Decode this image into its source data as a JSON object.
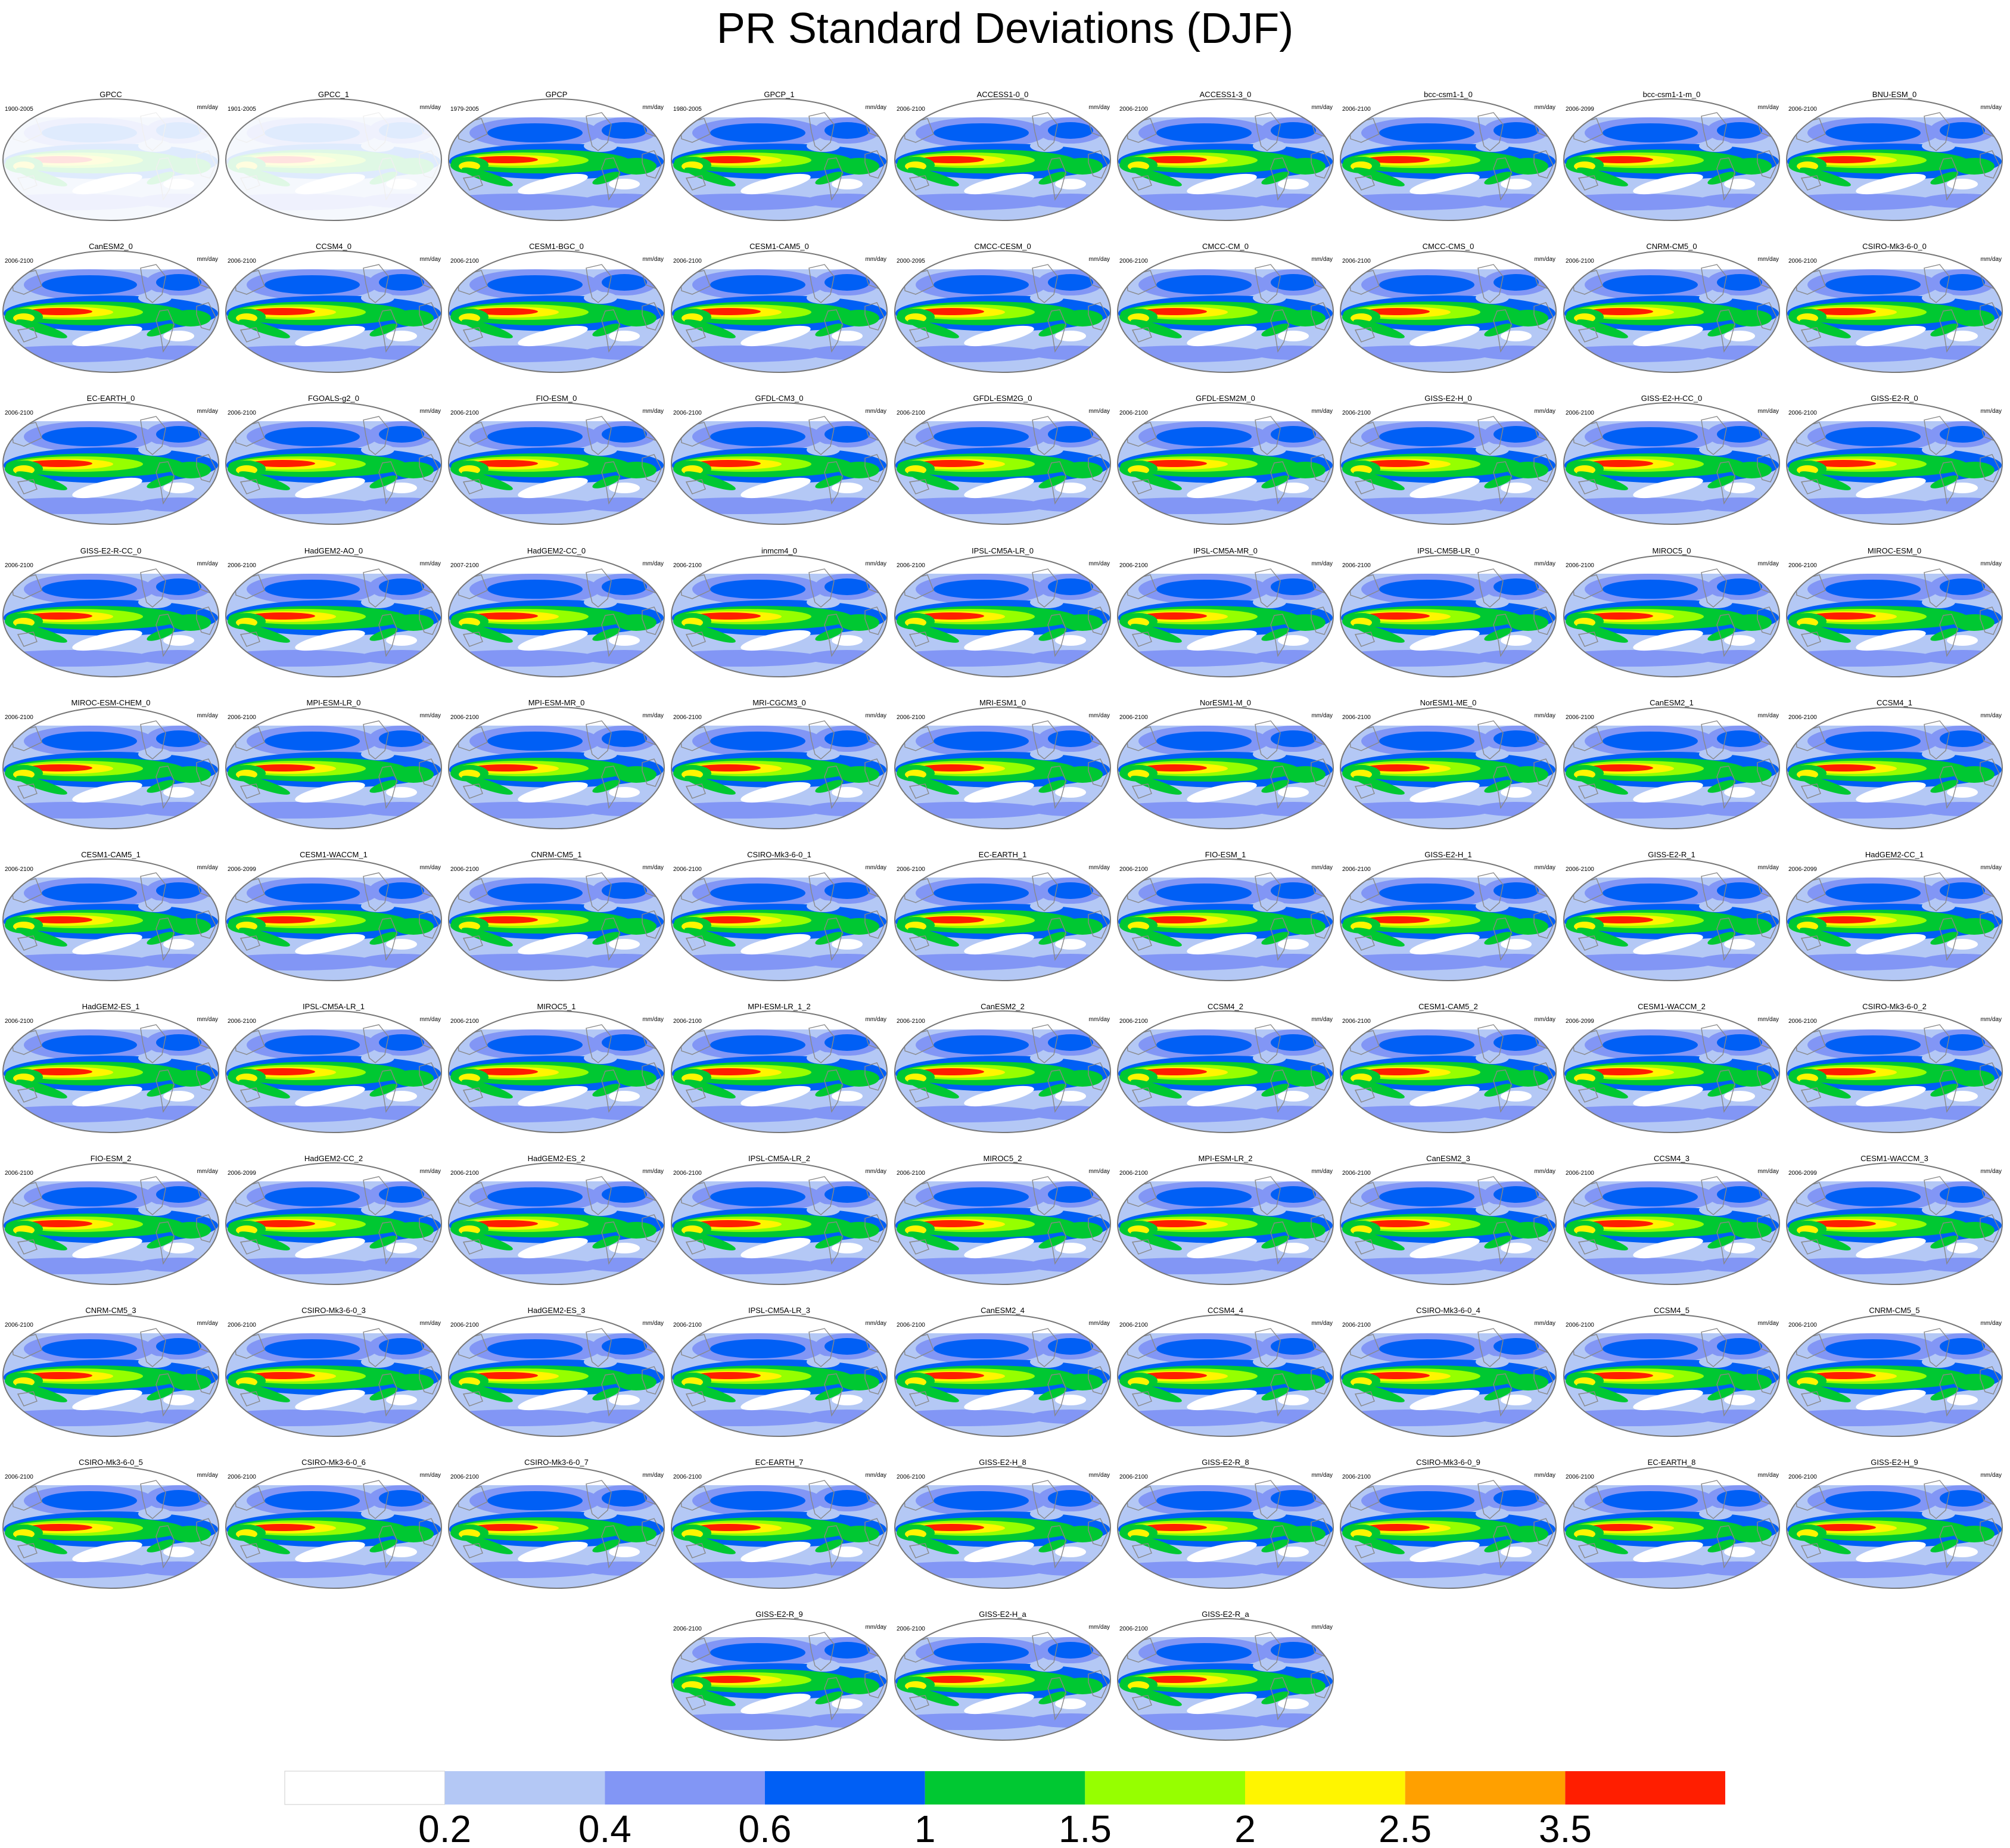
{
  "title": "PR Standard Deviations (DJF)",
  "panel_units": "mm/day",
  "panels": [
    {
      "name": "GPCC",
      "period": "1900-2005"
    },
    {
      "name": "GPCC_1",
      "period": "1901-2005"
    },
    {
      "name": "GPCP",
      "period": "1979-2005"
    },
    {
      "name": "GPCP_1",
      "period": "1980-2005"
    },
    {
      "name": "ACCESS1-0_0",
      "period": "2006-2100"
    },
    {
      "name": "ACCESS1-3_0",
      "period": "2006-2100"
    },
    {
      "name": "bcc-csm1-1_0",
      "period": "2006-2100"
    },
    {
      "name": "bcc-csm1-1-m_0",
      "period": "2006-2099"
    },
    {
      "name": "BNU-ESM_0",
      "period": "2006-2100"
    },
    {
      "name": "CanESM2_0",
      "period": "2006-2100"
    },
    {
      "name": "CCSM4_0",
      "period": "2006-2100"
    },
    {
      "name": "CESM1-BGC_0",
      "period": "2006-2100"
    },
    {
      "name": "CESM1-CAM5_0",
      "period": "2006-2100"
    },
    {
      "name": "CMCC-CESM_0",
      "period": "2000-2095"
    },
    {
      "name": "CMCC-CM_0",
      "period": "2006-2100"
    },
    {
      "name": "CMCC-CMS_0",
      "period": "2006-2100"
    },
    {
      "name": "CNRM-CM5_0",
      "period": "2006-2100"
    },
    {
      "name": "CSIRO-Mk3-6-0_0",
      "period": "2006-2100"
    },
    {
      "name": "EC-EARTH_0",
      "period": "2006-2100"
    },
    {
      "name": "FGOALS-g2_0",
      "period": "2006-2100"
    },
    {
      "name": "FIO-ESM_0",
      "period": "2006-2100"
    },
    {
      "name": "GFDL-CM3_0",
      "period": "2006-2100"
    },
    {
      "name": "GFDL-ESM2G_0",
      "period": "2006-2100"
    },
    {
      "name": "GFDL-ESM2M_0",
      "period": "2006-2100"
    },
    {
      "name": "GISS-E2-H_0",
      "period": "2006-2100"
    },
    {
      "name": "GISS-E2-H-CC_0",
      "period": "2006-2100"
    },
    {
      "name": "GISS-E2-R_0",
      "period": "2006-2100"
    },
    {
      "name": "GISS-E2-R-CC_0",
      "period": "2006-2100"
    },
    {
      "name": "HadGEM2-AO_0",
      "period": "2006-2100"
    },
    {
      "name": "HadGEM2-CC_0",
      "period": "2007-2100"
    },
    {
      "name": "inmcm4_0",
      "period": "2006-2100"
    },
    {
      "name": "IPSL-CM5A-LR_0",
      "period": "2006-2100"
    },
    {
      "name": "IPSL-CM5A-MR_0",
      "period": "2006-2100"
    },
    {
      "name": "IPSL-CM5B-LR_0",
      "period": "2006-2100"
    },
    {
      "name": "MIROC5_0",
      "period": "2006-2100"
    },
    {
      "name": "MIROC-ESM_0",
      "period": "2006-2100"
    },
    {
      "name": "MIROC-ESM-CHEM_0",
      "period": "2006-2100"
    },
    {
      "name": "MPI-ESM-LR_0",
      "period": "2006-2100"
    },
    {
      "name": "MPI-ESM-MR_0",
      "period": "2006-2100"
    },
    {
      "name": "MRI-CGCM3_0",
      "period": "2006-2100"
    },
    {
      "name": "MRI-ESM1_0",
      "period": "2006-2100"
    },
    {
      "name": "NorESM1-M_0",
      "period": "2006-2100"
    },
    {
      "name": "NorESM1-ME_0",
      "period": "2006-2100"
    },
    {
      "name": "CanESM2_1",
      "period": "2006-2100"
    },
    {
      "name": "CCSM4_1",
      "period": "2006-2100"
    },
    {
      "name": "CESM1-CAM5_1",
      "period": "2006-2100"
    },
    {
      "name": "CESM1-WACCM_1",
      "period": "2006-2099"
    },
    {
      "name": "CNRM-CM5_1",
      "period": "2006-2100"
    },
    {
      "name": "CSIRO-Mk3-6-0_1",
      "period": "2006-2100"
    },
    {
      "name": "EC-EARTH_1",
      "period": "2006-2100"
    },
    {
      "name": "FIO-ESM_1",
      "period": "2006-2100"
    },
    {
      "name": "GISS-E2-H_1",
      "period": "2006-2100"
    },
    {
      "name": "GISS-E2-R_1",
      "period": "2006-2100"
    },
    {
      "name": "HadGEM2-CC_1",
      "period": "2006-2099"
    },
    {
      "name": "HadGEM2-ES_1",
      "period": "2006-2100"
    },
    {
      "name": "IPSL-CM5A-LR_1",
      "period": "2006-2100"
    },
    {
      "name": "MIROC5_1",
      "period": "2006-2100"
    },
    {
      "name": "MPI-ESM-LR_1_2",
      "period": "2006-2100"
    },
    {
      "name": "CanESM2_2",
      "period": "2006-2100"
    },
    {
      "name": "CCSM4_2",
      "period": "2006-2100"
    },
    {
      "name": "CESM1-CAM5_2",
      "period": "2006-2100"
    },
    {
      "name": "CESM1-WACCM_2",
      "period": "2006-2099"
    },
    {
      "name": "CSIRO-Mk3-6-0_2",
      "period": "2006-2100"
    },
    {
      "name": "FIO-ESM_2",
      "period": "2006-2100"
    },
    {
      "name": "HadGEM2-CC_2",
      "period": "2006-2099"
    },
    {
      "name": "HadGEM2-ES_2",
      "period": "2006-2100"
    },
    {
      "name": "IPSL-CM5A-LR_2",
      "period": "2006-2100"
    },
    {
      "name": "MIROC5_2",
      "period": "2006-2100"
    },
    {
      "name": "MPI-ESM-LR_2",
      "period": "2006-2100"
    },
    {
      "name": "CanESM2_3",
      "period": "2006-2100"
    },
    {
      "name": "CCSM4_3",
      "period": "2006-2100"
    },
    {
      "name": "CESM1-WACCM_3",
      "period": "2006-2099"
    },
    {
      "name": "CNRM-CM5_3",
      "period": "2006-2100"
    },
    {
      "name": "CSIRO-Mk3-6-0_3",
      "period": "2006-2100"
    },
    {
      "name": "HadGEM2-ES_3",
      "period": "2006-2100"
    },
    {
      "name": "IPSL-CM5A-LR_3",
      "period": "2006-2100"
    },
    {
      "name": "CanESM2_4",
      "period": "2006-2100"
    },
    {
      "name": "CCSM4_4",
      "period": "2006-2100"
    },
    {
      "name": "CSIRO-Mk3-6-0_4",
      "period": "2006-2100"
    },
    {
      "name": "CCSM4_5",
      "period": "2006-2100"
    },
    {
      "name": "CNRM-CM5_5",
      "period": "2006-2100"
    },
    {
      "name": "CSIRO-Mk3-6-0_5",
      "period": "2006-2100"
    },
    {
      "name": "CSIRO-Mk3-6-0_6",
      "period": "2006-2100"
    },
    {
      "name": "CSIRO-Mk3-6-0_7",
      "period": "2006-2100"
    },
    {
      "name": "EC-EARTH_7",
      "period": "2006-2100"
    },
    {
      "name": "GISS-E2-H_8",
      "period": "2006-2100"
    },
    {
      "name": "GISS-E2-R_8",
      "period": "2006-2100"
    },
    {
      "name": "CSIRO-Mk3-6-0_9",
      "period": "2006-2100"
    },
    {
      "name": "EC-EARTH_8",
      "period": "2006-2100"
    },
    {
      "name": "GISS-E2-H_9",
      "period": "2006-2100"
    },
    {
      "name": "GISS-E2-R_9",
      "period": "2006-2100"
    },
    {
      "name": "GISS-E2-H_a",
      "period": "2006-2100"
    },
    {
      "name": "GISS-E2-R_a",
      "period": "2006-2100"
    }
  ],
  "colorbar": {
    "colors": [
      "#ffffff",
      "#b4c8f5",
      "#8296f5",
      "#005ff5",
      "#00c832",
      "#96ff00",
      "#fff500",
      "#ffa000",
      "#ff1e00"
    ],
    "labels": [
      "0.2",
      "0.4",
      "0.6",
      "1",
      "1.5",
      "2",
      "2.5",
      "3.5"
    ]
  },
  "colors": {
    "coast": "#888888",
    "frame": "#777777",
    "text": "#000000"
  }
}
